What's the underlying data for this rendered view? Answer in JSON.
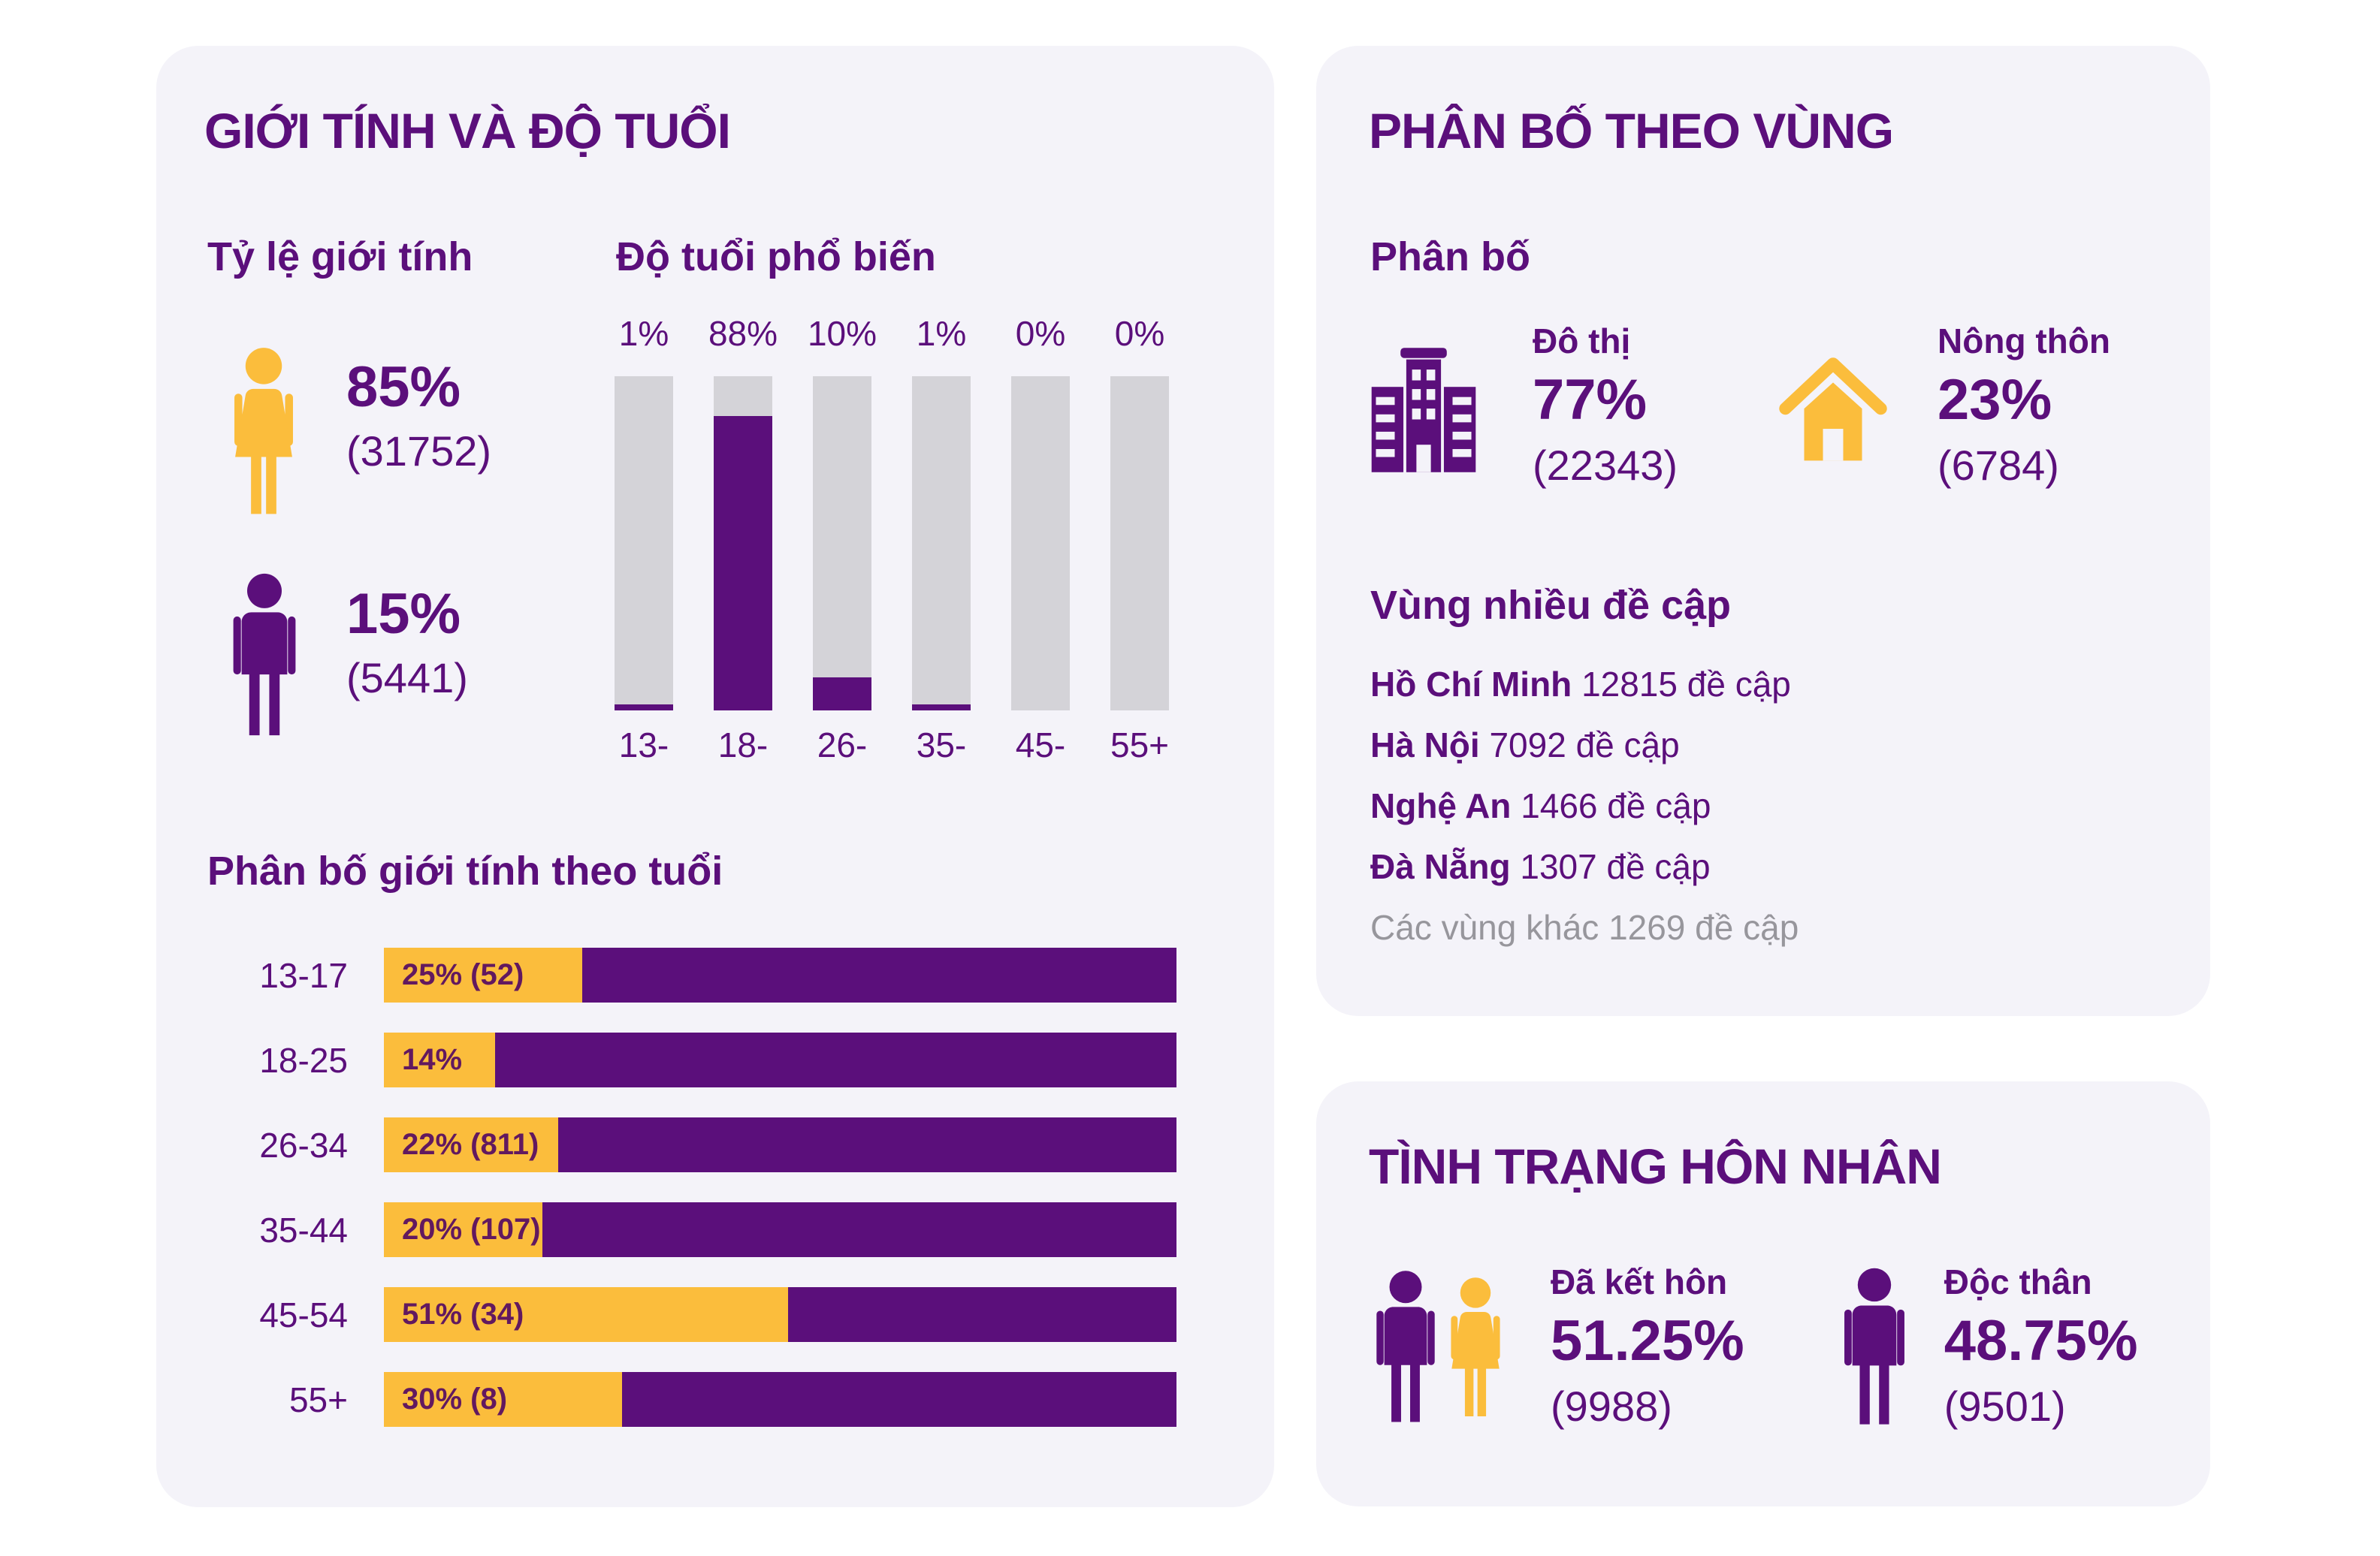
{
  "colors": {
    "purple": "#5B0F7B",
    "yellow": "#FBBD3C",
    "card_bg": "#F4F3F9",
    "track_gray": "#D4D3D8",
    "muted_gray": "#97969C",
    "in_bar_label": "#62195F",
    "page_bg": "#FFFFFF"
  },
  "gender_age_card": {
    "title": "GIỚI TÍNH VÀ ĐỘ TUỔI",
    "gender_ratio_heading": "Tỷ lệ giới tính",
    "female_percent": "85%",
    "female_count": "(31752)",
    "male_percent": "15%",
    "male_count": "(5441)",
    "age_heading": "Độ tuổi phổ biến",
    "by_age_heading": "Phân bố giới tính theo tuổi"
  },
  "region_card": {
    "title": "PHÂN BỐ THEO VÙNG",
    "distribution_heading": "Phân bố",
    "urban_label": "Đô thị",
    "urban_percent": "77%",
    "urban_count": "(22343)",
    "rural_label": "Nông thôn",
    "rural_percent": "23%",
    "rural_count": "(6784)",
    "regions_heading": "Vùng nhiều đề cập",
    "regions": [
      {
        "name": "Hồ Chí Minh",
        "mentions": "12815 đề cập"
      },
      {
        "name": "Hà Nội",
        "mentions": "7092 đề cập"
      },
      {
        "name": "Nghệ An",
        "mentions": "1466 đề cập"
      },
      {
        "name": "Đà Nẵng",
        "mentions": "1307 đề cập"
      },
      {
        "name": "Các vùng khác",
        "mentions": "1269 đề cập"
      }
    ]
  },
  "marital_card": {
    "title": "TÌNH TRẠNG HÔN NHÂN",
    "married_label": "Đã kết hôn",
    "married_percent": "51.25%",
    "married_count": "(9988)",
    "single_label": "Độc thân",
    "single_percent": "48.75%",
    "single_count": "(9501)"
  },
  "chart_data": [
    {
      "id": "gender_ratio",
      "type": "pie",
      "title": "Tỷ lệ giới tính",
      "slices": [
        {
          "label": "Nữ",
          "percent": 85,
          "count": 31752,
          "color": "#FBBD3C"
        },
        {
          "label": "Nam",
          "percent": 15,
          "count": 5441,
          "color": "#5B0F7B"
        }
      ]
    },
    {
      "id": "age_distribution",
      "type": "bar",
      "title": "Độ tuổi phổ biến",
      "categories": [
        "13-",
        "18-",
        "26-",
        "35-",
        "45-",
        "55+"
      ],
      "values": [
        1,
        88,
        10,
        1,
        0,
        0
      ],
      "unit": "%",
      "ylim": [
        0,
        100
      ],
      "bar_color": "#5B0F7B",
      "track_color": "#D4D3D8"
    },
    {
      "id": "gender_by_age",
      "type": "bar",
      "subtype": "stacked-horizontal",
      "title": "Phân bố giới tính theo tuổi",
      "series_colors": {
        "female": "#FBBD3C",
        "male": "#5B0F7B"
      },
      "rows": [
        {
          "age": "13-17",
          "female_pct": 25,
          "male_pct": 75,
          "label": "25% (52)"
        },
        {
          "age": "18-25",
          "female_pct": 14,
          "male_pct": 86,
          "label": "14%"
        },
        {
          "age": "26-34",
          "female_pct": 22,
          "male_pct": 78,
          "label": "22% (811)"
        },
        {
          "age": "35-44",
          "female_pct": 20,
          "male_pct": 80,
          "label": "20% (107)"
        },
        {
          "age": "45-54",
          "female_pct": 51,
          "male_pct": 49,
          "label": "51% (34)"
        },
        {
          "age": "55+",
          "female_pct": 30,
          "male_pct": 70,
          "label": "30% (8)"
        }
      ]
    },
    {
      "id": "urban_rural",
      "type": "pie",
      "title": "Phân bố",
      "slices": [
        {
          "label": "Đô thị",
          "percent": 77,
          "count": 22343,
          "color": "#5B0F7B"
        },
        {
          "label": "Nông thôn",
          "percent": 23,
          "count": 6784,
          "color": "#FBBD3C"
        }
      ]
    },
    {
      "id": "regions_mentions",
      "type": "table",
      "title": "Vùng nhiều đề cập",
      "unit": "đề cập",
      "rows": [
        [
          "Hồ Chí Minh",
          12815
        ],
        [
          "Hà Nội",
          7092
        ],
        [
          "Nghệ An",
          1466
        ],
        [
          "Đà Nẵng",
          1307
        ],
        [
          "Các vùng khác",
          1269
        ]
      ]
    },
    {
      "id": "marital_status",
      "type": "pie",
      "title": "Tình trạng hôn nhân",
      "slices": [
        {
          "label": "Đã kết hôn",
          "percent": 51.25,
          "count": 9988
        },
        {
          "label": "Độc thân",
          "percent": 48.75,
          "count": 9501
        }
      ]
    }
  ]
}
